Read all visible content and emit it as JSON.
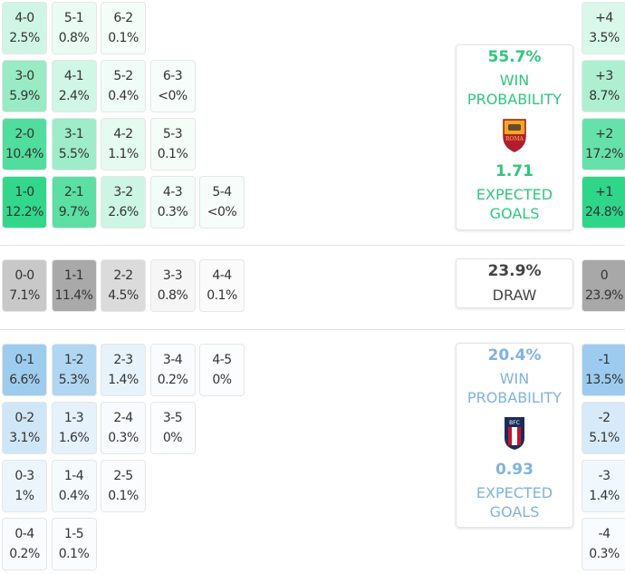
{
  "colors": {
    "home": "#2ed68a",
    "away": "#9ccbef",
    "draw": "#a8a8a8",
    "home_text": "#2ec77c",
    "away_text": "#7fb3de",
    "draw_text": "#444444"
  },
  "home": {
    "win_probability": "55.7%",
    "win_label": "WIN PROBABILITY",
    "expected_goals": "1.71",
    "xg_label": "EXPECTED GOALS",
    "crest_icon": "as-roma-crest",
    "crest_text": "ROMA",
    "scores": [
      [
        {
          "s": "4-0",
          "p": "2.5%"
        },
        {
          "s": "5-1",
          "p": "0.8%"
        },
        {
          "s": "6-2",
          "p": "0.1%"
        }
      ],
      [
        {
          "s": "3-0",
          "p": "5.9%"
        },
        {
          "s": "4-1",
          "p": "2.4%"
        },
        {
          "s": "5-2",
          "p": "0.4%"
        },
        {
          "s": "6-3",
          "p": "<0%"
        }
      ],
      [
        {
          "s": "2-0",
          "p": "10.4%"
        },
        {
          "s": "3-1",
          "p": "5.5%"
        },
        {
          "s": "4-2",
          "p": "1.1%"
        },
        {
          "s": "5-3",
          "p": "0.1%"
        }
      ],
      [
        {
          "s": "1-0",
          "p": "12.2%"
        },
        {
          "s": "2-1",
          "p": "9.7%"
        },
        {
          "s": "3-2",
          "p": "2.6%"
        },
        {
          "s": "4-3",
          "p": "0.3%"
        },
        {
          "s": "5-4",
          "p": "<0%"
        }
      ]
    ],
    "margins": [
      {
        "m": "+4",
        "p": "3.5%"
      },
      {
        "m": "+3",
        "p": "8.7%"
      },
      {
        "m": "+2",
        "p": "17.2%"
      },
      {
        "m": "+1",
        "p": "24.8%"
      }
    ]
  },
  "draw": {
    "probability": "23.9%",
    "label": "DRAW",
    "scores": [
      [
        {
          "s": "0-0",
          "p": "7.1%"
        },
        {
          "s": "1-1",
          "p": "11.4%"
        },
        {
          "s": "2-2",
          "p": "4.5%"
        },
        {
          "s": "3-3",
          "p": "0.8%"
        },
        {
          "s": "4-4",
          "p": "0.1%"
        }
      ]
    ],
    "margins": [
      {
        "m": "0",
        "p": "23.9%"
      }
    ]
  },
  "away": {
    "win_probability": "20.4%",
    "win_label": "WIN PROBABILITY",
    "expected_goals": "0.93",
    "xg_label": "EXPECTED GOALS",
    "crest_icon": "bologna-crest",
    "crest_text": "BFC",
    "scores": [
      [
        {
          "s": "0-1",
          "p": "6.6%"
        },
        {
          "s": "1-2",
          "p": "5.3%"
        },
        {
          "s": "2-3",
          "p": "1.4%"
        },
        {
          "s": "3-4",
          "p": "0.2%"
        },
        {
          "s": "4-5",
          "p": "0%"
        }
      ],
      [
        {
          "s": "0-2",
          "p": "3.1%"
        },
        {
          "s": "1-3",
          "p": "1.6%"
        },
        {
          "s": "2-4",
          "p": "0.3%"
        },
        {
          "s": "3-5",
          "p": "0%"
        }
      ],
      [
        {
          "s": "0-3",
          "p": "1%"
        },
        {
          "s": "1-4",
          "p": "0.4%"
        },
        {
          "s": "2-5",
          "p": "0.1%"
        }
      ],
      [
        {
          "s": "0-4",
          "p": "0.2%"
        },
        {
          "s": "1-5",
          "p": "0.1%"
        }
      ]
    ],
    "margins": [
      {
        "m": "-1",
        "p": "13.5%"
      },
      {
        "m": "-2",
        "p": "5.1%"
      },
      {
        "m": "-3",
        "p": "1.4%"
      },
      {
        "m": "-4",
        "p": "0.3%"
      }
    ]
  }
}
